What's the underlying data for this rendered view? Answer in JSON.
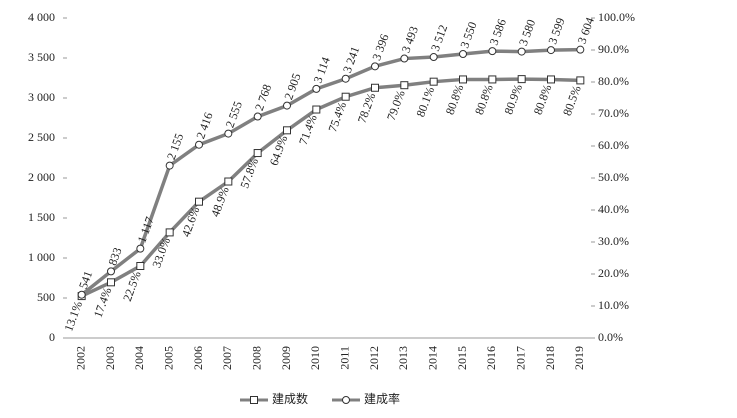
{
  "chart_data": {
    "type": "line",
    "x": [
      "2002",
      "2003",
      "2004",
      "2005",
      "2006",
      "2007",
      "2008",
      "2009",
      "2010",
      "2011",
      "2012",
      "2013",
      "2014",
      "2015",
      "2016",
      "2017",
      "2018",
      "2019"
    ],
    "series": [
      {
        "name": "建成数",
        "marker": "square",
        "color": "#808080",
        "axis": "y2",
        "values": [
          13.1,
          17.4,
          22.5,
          33.0,
          42.6,
          48.9,
          57.8,
          64.9,
          71.4,
          75.4,
          78.2,
          79.0,
          80.1,
          80.8,
          80.8,
          80.9,
          80.8,
          80.5
        ],
        "value_labels": [
          "13.1%",
          "17.4%",
          "22.5%",
          "33.0%",
          "42.6%",
          "48.9%",
          "57.8%",
          "64.9%",
          "71.4%",
          "75.4%",
          "78.2%",
          "79.0%",
          "80.1%",
          "80.8%",
          "80.8%",
          "80.9%",
          "80.8%",
          "80.5%"
        ]
      },
      {
        "name": "建成率",
        "marker": "circle",
        "color": "#808080",
        "values": [
          541,
          833,
          1117,
          2155,
          2416,
          2555,
          2768,
          2905,
          3114,
          3241,
          3396,
          3493,
          3512,
          3550,
          3586,
          3580,
          3599,
          3604
        ],
        "value_labels": [
          "541",
          "833",
          "1 117",
          "2 155",
          "2 416",
          "2 555",
          "2 768",
          "2 905",
          "3 114",
          "3 241",
          "3 396",
          "3 493",
          "3 512",
          "3 550",
          "3 586",
          "3 580",
          "3 599",
          "3 604"
        ]
      }
    ],
    "ylim": [
      0,
      4000
    ],
    "yticks": [
      0,
      500,
      {
        "value": 1000,
        "label": "1 000"
      },
      {
        "value": 1500,
        "label": "1 500"
      },
      {
        "value": 2000,
        "label": "2 000"
      },
      {
        "value": 2500,
        "label": "2 500"
      },
      {
        "value": 3000,
        "label": "3 000"
      },
      {
        "value": 3500,
        "label": "3 500"
      },
      {
        "value": 4000,
        "label": "4 000"
      }
    ],
    "y2lim": [
      0,
      100
    ],
    "y2ticks": [
      {
        "value": 0,
        "label": "0.0%"
      },
      {
        "value": 10,
        "label": "10.0%"
      },
      {
        "value": 20,
        "label": "20.0%"
      },
      {
        "value": 30,
        "label": "30.0%"
      },
      {
        "value": 40,
        "label": "40.0%"
      },
      {
        "value": 50,
        "label": "50.0%"
      },
      {
        "value": 60,
        "label": "60.0%"
      },
      {
        "value": 70,
        "label": "70.0%"
      },
      {
        "value": 80,
        "label": "80.0%"
      },
      {
        "value": 90,
        "label": "90.0%"
      },
      {
        "value": 100,
        "label": "100.0%"
      }
    ],
    "legend": "bottom"
  }
}
